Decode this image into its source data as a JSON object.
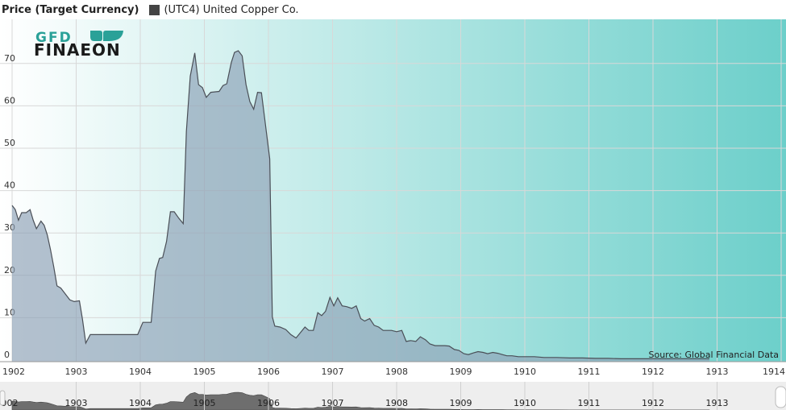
{
  "chart_data": {
    "type": "area",
    "title": "Price (Target Currency)",
    "xlabel": "",
    "ylabel": "",
    "ylim": [
      0,
      80
    ],
    "yticks": [
      0,
      10,
      20,
      30,
      40,
      50,
      60,
      70
    ],
    "xticks": [
      "1902",
      "1903",
      "1904",
      "1905",
      "1906",
      "1907",
      "1908",
      "1909",
      "1910",
      "1911",
      "1912",
      "1913",
      "1914"
    ],
    "navigator_labels": [
      "902",
      "1903",
      "1904",
      "1905",
      "1906",
      "1907",
      "1908",
      "1909",
      "1910",
      "1911",
      "1912",
      "1913"
    ],
    "grid": true,
    "legend_position": "top-left",
    "series": [
      {
        "name": "(UTC4) United Copper Co.",
        "color": "#444444",
        "points": [
          [
            1902.0,
            36.5
          ],
          [
            1902.05,
            35.5
          ],
          [
            1902.1,
            33
          ],
          [
            1902.15,
            34.8
          ],
          [
            1902.22,
            34.8
          ],
          [
            1902.28,
            35.5
          ],
          [
            1902.33,
            33
          ],
          [
            1902.38,
            31
          ],
          [
            1902.45,
            32.8
          ],
          [
            1902.5,
            31.8
          ],
          [
            1902.55,
            29.5
          ],
          [
            1902.6,
            26
          ],
          [
            1902.65,
            22
          ],
          [
            1902.7,
            17.5
          ],
          [
            1902.76,
            17
          ],
          [
            1902.82,
            15.8
          ],
          [
            1902.9,
            14.2
          ],
          [
            1902.97,
            13.8
          ],
          [
            1903.05,
            14
          ],
          [
            1903.1,
            9.5
          ],
          [
            1903.15,
            4
          ],
          [
            1903.22,
            6
          ],
          [
            1903.4,
            6
          ],
          [
            1903.6,
            6
          ],
          [
            1903.8,
            6
          ],
          [
            1903.96,
            6
          ],
          [
            1904.04,
            8.9
          ],
          [
            1904.17,
            8.9
          ],
          [
            1904.24,
            21
          ],
          [
            1904.3,
            24
          ],
          [
            1904.35,
            24.2
          ],
          [
            1904.41,
            28
          ],
          [
            1904.47,
            35
          ],
          [
            1904.53,
            35
          ],
          [
            1904.6,
            33.5
          ],
          [
            1904.67,
            32.2
          ],
          [
            1904.72,
            54
          ],
          [
            1904.78,
            67
          ],
          [
            1904.85,
            72.5
          ],
          [
            1904.91,
            65
          ],
          [
            1904.97,
            64.3
          ],
          [
            1905.03,
            62
          ],
          [
            1905.1,
            63.2
          ],
          [
            1905.17,
            63.3
          ],
          [
            1905.23,
            63.4
          ],
          [
            1905.29,
            64.8
          ],
          [
            1905.35,
            65.2
          ],
          [
            1905.42,
            70.2
          ],
          [
            1905.47,
            72.6
          ],
          [
            1905.53,
            73
          ],
          [
            1905.59,
            71.8
          ],
          [
            1905.65,
            65
          ],
          [
            1905.71,
            61
          ],
          [
            1905.77,
            59.2
          ],
          [
            1905.83,
            63.2
          ],
          [
            1905.89,
            63.1
          ],
          [
            1905.95,
            56
          ],
          [
            1906.02,
            47.5
          ],
          [
            1906.06,
            10.2
          ],
          [
            1906.1,
            8
          ],
          [
            1906.18,
            7.8
          ],
          [
            1906.27,
            7.2
          ],
          [
            1906.35,
            6
          ],
          [
            1906.43,
            5.2
          ],
          [
            1906.5,
            6.5
          ],
          [
            1906.57,
            7.8
          ],
          [
            1906.63,
            7
          ],
          [
            1906.7,
            7
          ],
          [
            1906.77,
            11.2
          ],
          [
            1906.83,
            10.5
          ],
          [
            1906.89,
            11.5
          ],
          [
            1906.96,
            14.8
          ],
          [
            1907.02,
            12.8
          ],
          [
            1907.08,
            14.7
          ],
          [
            1907.15,
            12.8
          ],
          [
            1907.22,
            12.6
          ],
          [
            1907.3,
            12.2
          ],
          [
            1907.37,
            12.8
          ],
          [
            1907.44,
            9.8
          ],
          [
            1907.5,
            9.2
          ],
          [
            1907.58,
            9.8
          ],
          [
            1907.65,
            8.2
          ],
          [
            1907.72,
            7.8
          ],
          [
            1907.79,
            7
          ],
          [
            1907.85,
            7
          ],
          [
            1907.92,
            7
          ],
          [
            1908.0,
            6.7
          ],
          [
            1908.08,
            7
          ],
          [
            1908.15,
            4.4
          ],
          [
            1908.22,
            4.6
          ],
          [
            1908.3,
            4.4
          ],
          [
            1908.37,
            5.5
          ],
          [
            1908.45,
            4.8
          ],
          [
            1908.52,
            3.8
          ],
          [
            1908.6,
            3.4
          ],
          [
            1908.67,
            3.4
          ],
          [
            1908.75,
            3.4
          ],
          [
            1908.82,
            3.3
          ],
          [
            1908.9,
            2.5
          ],
          [
            1908.97,
            2.3
          ],
          [
            1909.05,
            1.5
          ],
          [
            1909.12,
            1.3
          ],
          [
            1909.2,
            1.7
          ],
          [
            1909.27,
            2
          ],
          [
            1909.35,
            1.8
          ],
          [
            1909.42,
            1.5
          ],
          [
            1909.5,
            1.8
          ],
          [
            1909.58,
            1.6
          ],
          [
            1909.65,
            1.3
          ],
          [
            1909.72,
            1
          ],
          [
            1909.8,
            1
          ],
          [
            1909.9,
            0.8
          ],
          [
            1910.0,
            0.8
          ],
          [
            1910.15,
            0.8
          ],
          [
            1910.3,
            0.6
          ],
          [
            1910.5,
            0.6
          ],
          [
            1910.7,
            0.5
          ],
          [
            1910.9,
            0.5
          ],
          [
            1911.1,
            0.4
          ],
          [
            1911.3,
            0.4
          ],
          [
            1911.5,
            0.3
          ],
          [
            1911.7,
            0.3
          ],
          [
            1911.9,
            0.3
          ],
          [
            1912.1,
            0.3
          ],
          [
            1912.3,
            0.3
          ],
          [
            1912.5,
            0.3
          ],
          [
            1912.7,
            0.3
          ],
          [
            1912.88,
            0.3
          ]
        ]
      }
    ],
    "annotations": [
      "Source: Global Financial Data"
    ]
  },
  "logo": {
    "line1": "GFD",
    "line2": "FINAEON"
  },
  "colors": {
    "background_left": "#ffffff",
    "background_right": "#6ccfca",
    "area_fill": "#8c9fb6",
    "area_stroke": "#4a4f57",
    "grid": "#d8d8d8",
    "logo_top": "#2aa198",
    "logo_bottom": "#1a1a1a",
    "navigator_fill": "#6e6e6e"
  }
}
